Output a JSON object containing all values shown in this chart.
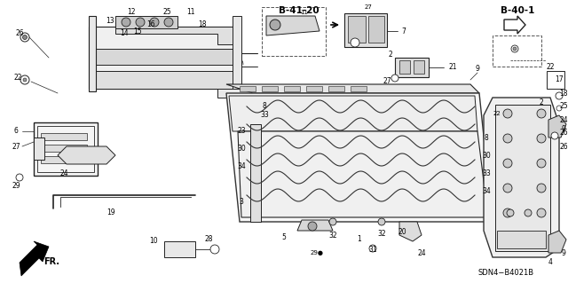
{
  "fig_width": 6.4,
  "fig_height": 3.19,
  "dpi": 100,
  "bg_color": "#ffffff",
  "line_color": "#222222",
  "text_color": "#000000",
  "diagram_code": "SDN4−B4021B",
  "ref_b4120": "B-41-20",
  "ref_b401": "B-40-1",
  "fr_label": "FR."
}
